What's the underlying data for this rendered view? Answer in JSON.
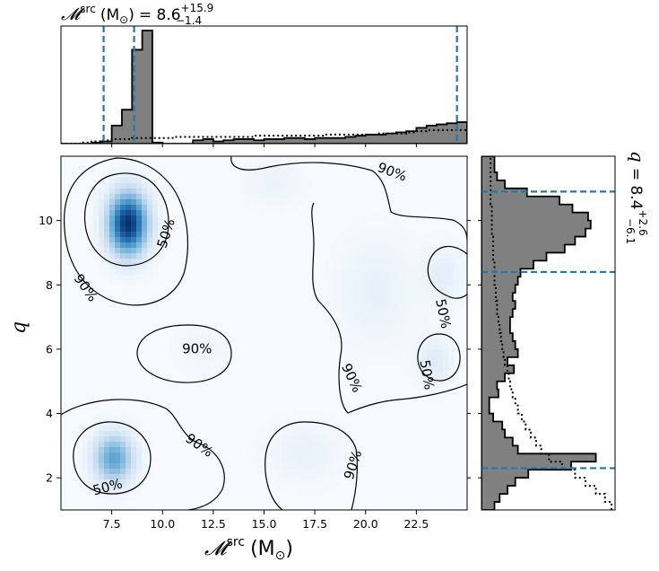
{
  "chart_data": {
    "type": "corner-plot",
    "colors": {
      "density": "#08519c",
      "hist_fill": "#808080",
      "hist_edge": "#000000",
      "credible_line": "#1f77b4",
      "contour": "#000000"
    },
    "main_panel": {
      "xlabel_symbol": "𝓜",
      "xlabel_sup": "src",
      "xlabel_unit_open": "(M",
      "xlabel_unit_sub": "⊙",
      "xlabel_unit_close": ")",
      "ylabel": "q",
      "xlim": [
        5.0,
        25.0
      ],
      "ylim": [
        1.0,
        12.0
      ],
      "xticks": [
        7.5,
        10.0,
        12.5,
        15.0,
        17.5,
        20.0,
        22.5
      ],
      "xtick_labels": [
        "7.5",
        "10.0",
        "12.5",
        "15.0",
        "17.5",
        "20.0",
        "22.5"
      ],
      "yticks": [
        2,
        4,
        6,
        8,
        10
      ],
      "ytick_labels": [
        "2",
        "4",
        "6",
        "8",
        "10"
      ],
      "density_peaks": [
        {
          "x": 8.3,
          "y": 9.9,
          "weight": 1.0,
          "sx": 1.0,
          "sy": 1.0
        },
        {
          "x": 7.6,
          "y": 2.6,
          "weight": 0.55,
          "sx": 1.0,
          "sy": 0.8
        },
        {
          "x": 23.8,
          "y": 8.3,
          "weight": 0.1,
          "sx": 1.0,
          "sy": 0.9
        },
        {
          "x": 23.4,
          "y": 5.6,
          "weight": 0.12,
          "sx": 0.9,
          "sy": 0.8
        },
        {
          "x": 20.5,
          "y": 7.8,
          "weight": 0.08,
          "sx": 2.0,
          "sy": 1.8
        },
        {
          "x": 15.5,
          "y": 11.2,
          "weight": 0.06,
          "sx": 1.5,
          "sy": 0.8
        },
        {
          "x": 17.0,
          "y": 2.8,
          "weight": 0.07,
          "sx": 2.0,
          "sy": 1.0
        },
        {
          "x": 12.0,
          "y": 6.0,
          "weight": 0.04,
          "sx": 1.5,
          "sy": 0.8
        }
      ],
      "contour_labels": [
        {
          "text": "90%",
          "x": 21.3,
          "y": 11.5,
          "angle": 20
        },
        {
          "text": "50%",
          "x": 10.2,
          "y": 9.6,
          "angle": -72
        },
        {
          "text": "90%",
          "x": 6.2,
          "y": 7.9,
          "angle": 55
        },
        {
          "text": "50%",
          "x": 23.8,
          "y": 7.1,
          "angle": 78
        },
        {
          "text": "90%",
          "x": 11.7,
          "y": 6.0,
          "angle": 0
        },
        {
          "text": "90%",
          "x": 19.3,
          "y": 5.1,
          "angle": 65
        },
        {
          "text": "50%",
          "x": 23.0,
          "y": 5.2,
          "angle": 80
        },
        {
          "text": "90%",
          "x": 11.8,
          "y": 3.0,
          "angle": 35
        },
        {
          "text": "90%",
          "x": 19.4,
          "y": 2.4,
          "angle": -72
        },
        {
          "text": "50%",
          "x": 7.3,
          "y": 1.7,
          "angle": -15
        }
      ]
    },
    "top_hist": {
      "title_symbol": "𝓜",
      "title_sup": "src",
      "title_unit_open": "(M",
      "title_unit_sub": "⊙",
      "title_unit_close": ")",
      "title_equals": "= 8.6",
      "title_plus": "+15.9",
      "title_minus": "−1.4",
      "credible_lines": [
        7.1,
        8.6,
        24.5
      ],
      "bin_edges": [
        5.0,
        5.5,
        6.0,
        6.5,
        7.0,
        7.5,
        8.0,
        8.5,
        9.0,
        9.5,
        10.0,
        10.5,
        11.0,
        11.5,
        12.0,
        12.5,
        13.0,
        13.5,
        14.0,
        14.5,
        15.0,
        15.5,
        16.0,
        16.5,
        17.0,
        17.5,
        18.0,
        18.5,
        19.0,
        19.5,
        20.0,
        20.5,
        21.0,
        21.5,
        22.0,
        22.5,
        23.0,
        23.5,
        24.0,
        24.5,
        25.0
      ],
      "counts": [
        0,
        0,
        0,
        0.01,
        0.02,
        0.16,
        0.3,
        0.83,
        1.0,
        0.01,
        0.0,
        0.0,
        0.0,
        0.03,
        0.04,
        0.02,
        0.03,
        0.04,
        0.04,
        0.03,
        0.04,
        0.04,
        0.05,
        0.05,
        0.04,
        0.05,
        0.05,
        0.05,
        0.06,
        0.07,
        0.08,
        0.08,
        0.09,
        0.1,
        0.11,
        0.14,
        0.16,
        0.17,
        0.18,
        0.19
      ],
      "prior": [
        0.0,
        0.0,
        0.01,
        0.02,
        0.03,
        0.04,
        0.04,
        0.05,
        0.05,
        0.05,
        0.05,
        0.06,
        0.06,
        0.06,
        0.06,
        0.06,
        0.06,
        0.06,
        0.06,
        0.07,
        0.07,
        0.07,
        0.07,
        0.07,
        0.07,
        0.07,
        0.08,
        0.08,
        0.08,
        0.08,
        0.08,
        0.09,
        0.09,
        0.09,
        0.1,
        0.11,
        0.12,
        0.12,
        0.12,
        0.12
      ]
    },
    "right_hist": {
      "title_symbol": "q",
      "title_equals": "= 8.4",
      "title_plus": "+2.6",
      "title_minus": "−6.1",
      "credible_lines": [
        2.3,
        8.4,
        10.9
      ],
      "bin_edges": [
        1.0,
        1.25,
        1.5,
        1.75,
        2.0,
        2.25,
        2.5,
        2.75,
        3.0,
        3.25,
        3.5,
        3.75,
        4.0,
        4.25,
        4.5,
        4.75,
        5.0,
        5.25,
        5.5,
        5.75,
        6.0,
        6.25,
        6.5,
        6.75,
        7.0,
        7.25,
        7.5,
        7.75,
        8.0,
        8.25,
        8.5,
        8.75,
        9.0,
        9.25,
        9.5,
        9.75,
        10.0,
        10.25,
        10.5,
        10.75,
        11.0,
        11.25,
        11.5,
        11.75,
        12.0
      ],
      "counts": [
        0.1,
        0.14,
        0.2,
        0.26,
        0.36,
        0.69,
        0.88,
        0.28,
        0.24,
        0.18,
        0.16,
        0.09,
        0.06,
        0.06,
        0.13,
        0.12,
        0.18,
        0.25,
        0.2,
        0.28,
        0.26,
        0.24,
        0.22,
        0.22,
        0.24,
        0.26,
        0.24,
        0.26,
        0.28,
        0.3,
        0.4,
        0.5,
        0.64,
        0.72,
        0.8,
        0.84,
        0.82,
        0.7,
        0.6,
        0.35,
        0.18,
        0.12,
        0.1,
        0.1
      ],
      "prior": [
        1.0,
        0.95,
        0.88,
        0.8,
        0.72,
        0.62,
        0.52,
        0.46,
        0.42,
        0.38,
        0.34,
        0.31,
        0.28,
        0.26,
        0.24,
        0.22,
        0.21,
        0.2,
        0.18,
        0.17,
        0.16,
        0.15,
        0.14,
        0.13,
        0.12,
        0.12,
        0.11,
        0.11,
        0.1,
        0.1,
        0.1,
        0.09,
        0.09,
        0.09,
        0.08,
        0.08,
        0.08,
        0.08,
        0.07,
        0.07,
        0.07,
        0.07,
        0.07,
        0.07
      ]
    }
  }
}
